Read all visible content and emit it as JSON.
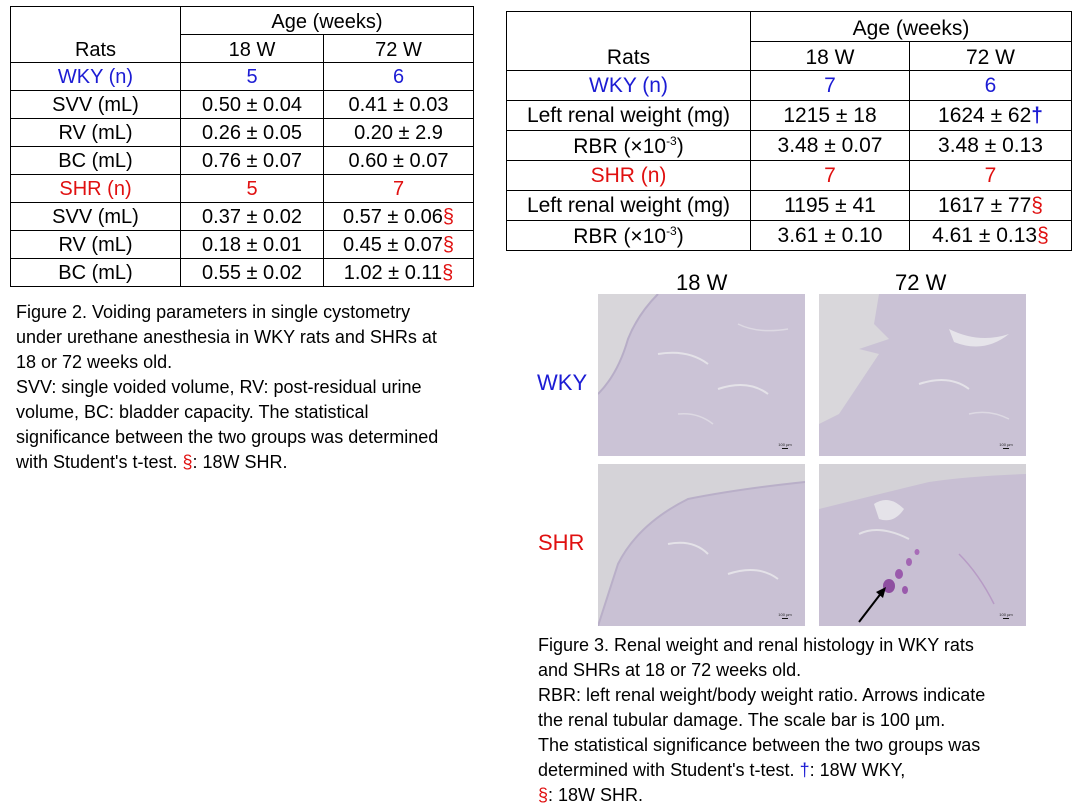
{
  "table1": {
    "rats_label": "Rats",
    "age_label": "Age (weeks)",
    "col_18": "18 W",
    "col_72": "72 W",
    "rows": [
      {
        "label": "WKY (n)",
        "v18": "5",
        "v72": "6",
        "mark": "",
        "color": "blue"
      },
      {
        "label": "SVV (mL)",
        "v18": "0.50 ± 0.04",
        "v72": "0.41 ± 0.03",
        "mark": "",
        "color": "black"
      },
      {
        "label": "RV (mL)",
        "v18": "0.26 ± 0.05",
        "v72": "0.20 ± 2.9",
        "mark": "",
        "color": "black"
      },
      {
        "label": "BC (mL)",
        "v18": "0.76 ± 0.07",
        "v72": "0.60 ± 0.07",
        "mark": "",
        "color": "black"
      },
      {
        "label": "SHR (n)",
        "v18": "5",
        "v72": "7",
        "mark": "",
        "color": "red"
      },
      {
        "label": "SVV (mL)",
        "v18": "0.37 ± 0.02",
        "v72": "0.57 ± 0.06",
        "mark": "§",
        "color": "black"
      },
      {
        "label": "RV (mL)",
        "v18": "0.18 ± 0.01",
        "v72": "0.45 ± 0.07",
        "mark": "§",
        "color": "black"
      },
      {
        "label": "BC (mL)",
        "v18": "0.55 ± 0.02",
        "v72": "1.02 ± 0.11",
        "mark": "§",
        "color": "black"
      }
    ]
  },
  "table2": {
    "rats_label": "Rats",
    "age_label": "Age (weeks)",
    "col_18": "18 W",
    "col_72": "72 W",
    "rows": [
      {
        "label": "WKY (n)",
        "v18": "7",
        "v72": "6",
        "mark": "",
        "mark_color": "",
        "color": "blue"
      },
      {
        "label": "Left renal weight (mg)",
        "v18": "1215 ± 18",
        "v72": "1624 ± 62",
        "mark": "†",
        "mark_color": "blue",
        "color": "black"
      },
      {
        "label": "RBR (×10",
        "sup": "-3",
        "label_end": ")",
        "v18": "3.48 ± 0.07",
        "v72": "3.48 ± 0.13",
        "mark": "",
        "mark_color": "",
        "color": "black"
      },
      {
        "label": "SHR (n)",
        "v18": "7",
        "v72": "7",
        "mark": "",
        "mark_color": "",
        "color": "red"
      },
      {
        "label": "Left renal weight (mg)",
        "v18": "1195 ± 41",
        "v72": "1617 ± 77",
        "mark": "§",
        "mark_color": "red",
        "color": "black"
      },
      {
        "label": "RBR (×10",
        "sup": "-3",
        "label_end": ")",
        "v18": "3.61 ± 0.10",
        "v72": "4.61 ± 0.13",
        "mark": "§",
        "mark_color": "red",
        "color": "black"
      }
    ]
  },
  "figure2_caption": {
    "lines": [
      "Figure 2. Voiding parameters in single cystometry",
      "under urethane anesthesia in WKY rats and SHRs at",
      "18 or 72 weeks old.",
      "SVV: single voided volume, RV: post-residual urine",
      "volume, BC: bladder capacity. The statistical",
      "significance between the two groups was determined"
    ],
    "last_line_pre": "with Student's t-test. ",
    "last_mark": "§",
    "last_line_post": ": 18W SHR."
  },
  "histology": {
    "col_18": "18 W",
    "col_72": "72 W",
    "row_wky": "WKY",
    "row_shr": "SHR",
    "scale_text": "100 µm"
  },
  "figure3_caption": {
    "lines": [
      "Figure 3. Renal weight and renal histology in WKY rats",
      "and SHRs at 18 or 72 weeks old.",
      "RBR: left renal weight/body weight ratio. Arrows indicate",
      "the renal tubular damage. The scale bar is 100 µm.",
      "The statistical significance between the two groups was"
    ],
    "line6_pre": "determined with Student's t-test. ",
    "line6_mark": "†",
    "line6_post": ": 18W WKY,",
    "line7_mark": "§",
    "line7_post": ": 18W SHR."
  },
  "colors": {
    "wky_blue": "#1c1cd4",
    "shr_red": "#e01010",
    "tissue": "#c7bfd3",
    "background_gray": "#d4d2d6"
  }
}
